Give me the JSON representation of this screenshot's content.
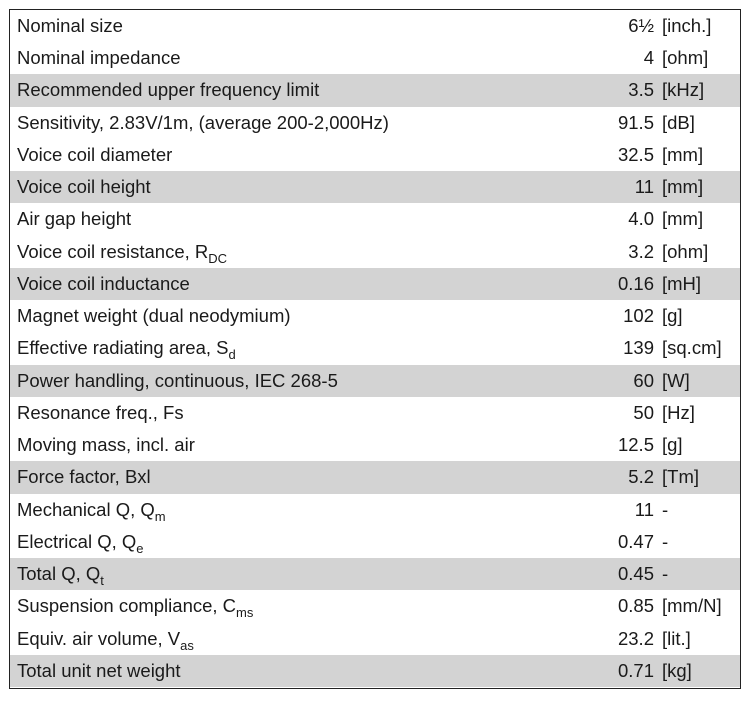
{
  "table": {
    "rows": [
      {
        "label": "Nominal size",
        "value": "6½",
        "unit": "[inch.]"
      },
      {
        "label": "Nominal impedance",
        "value": "4",
        "unit": "[ohm]"
      },
      {
        "label": "Recommended upper frequency limit",
        "value": "3.5",
        "unit": "[kHz]"
      },
      {
        "label": "Sensitivity, 2.83V/1m, (average 200-2,000Hz)",
        "value": "91.5",
        "unit": "[dB]"
      },
      {
        "label": "Voice coil diameter",
        "value": "32.5",
        "unit": "[mm]"
      },
      {
        "label": "Voice coil height",
        "value": "11",
        "unit": "[mm]"
      },
      {
        "label": "Air gap height",
        "value": "4.0",
        "unit": "[mm]"
      },
      {
        "label": "Voice coil resistance, R",
        "sub": "DC",
        "value": "3.2",
        "unit": "[ohm]"
      },
      {
        "label": "Voice coil inductance",
        "value": "0.16",
        "unit": "[mH]"
      },
      {
        "label": "Magnet weight (dual neodymium)",
        "value": "102",
        "unit": "[g]"
      },
      {
        "label": "Effective radiating area, S",
        "sub": "d",
        "value": "139",
        "unit": "[sq.cm]"
      },
      {
        "label": "Power handling, continuous, IEC 268-5",
        "value": "60",
        "unit": "[W]"
      },
      {
        "label": "Resonance freq., Fs",
        "value": "50",
        "unit": "[Hz]"
      },
      {
        "label": "Moving mass, incl. air",
        "value": "12.5",
        "unit": "[g]"
      },
      {
        "label": "Force factor, Bxl",
        "value": "5.2",
        "unit": "[Tm]"
      },
      {
        "label": "Mechanical Q, Q",
        "sub": "m",
        "value": "11",
        "unit": "-"
      },
      {
        "label": "Electrical Q, Q",
        "sub": "e",
        "value": "0.47",
        "unit": "-"
      },
      {
        "label": "Total Q, Q",
        "sub": "t",
        "value": "0.45",
        "unit": "-"
      },
      {
        "label": "Suspension compliance, C",
        "sub": "ms",
        "value": "0.85",
        "unit": "[mm/N]"
      },
      {
        "label": "Equiv. air volume, V",
        "sub": "as",
        "value": "23.2",
        "unit": "[lit.]"
      },
      {
        "label": "Total unit net weight",
        "value": "0.71",
        "unit": "[kg]"
      }
    ]
  }
}
